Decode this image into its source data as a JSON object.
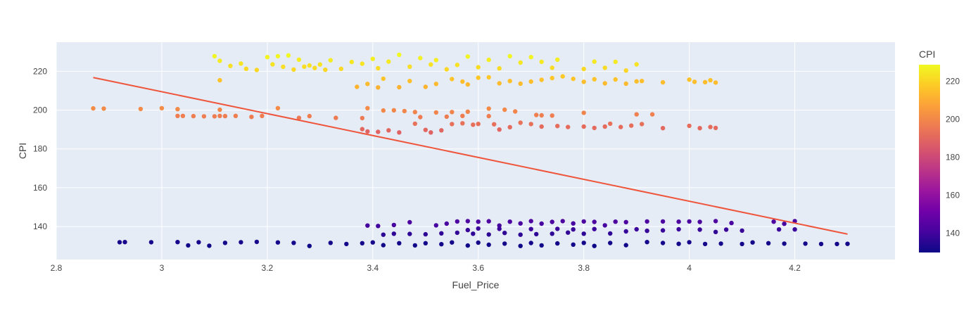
{
  "chart_data": {
    "type": "scatter",
    "title": "",
    "xlabel": "Fuel_Price",
    "ylabel": "CPI",
    "xlim": [
      2.8,
      4.39
    ],
    "ylim": [
      123,
      235
    ],
    "x_ticks": [
      2.8,
      3,
      3.2,
      3.4,
      3.6,
      3.8,
      4,
      4.2
    ],
    "x_tick_labels": [
      "2.8",
      "3",
      "3.2",
      "3.4",
      "3.6",
      "3.8",
      "4",
      "4.2"
    ],
    "y_ticks": [
      140,
      160,
      180,
      200,
      220
    ],
    "y_tick_labels": [
      "140",
      "160",
      "180",
      "200",
      "220"
    ],
    "grid": true,
    "background_color": "#e5ecf6",
    "trendline": {
      "name": "",
      "color": "#ef553b",
      "points": [
        [
          2.87,
          216.8
        ],
        [
          4.3,
          136.1
        ]
      ]
    },
    "colorbar": {
      "title": "CPI",
      "range": [
        129.8,
        228.7
      ],
      "ticks": [
        140,
        160,
        180,
        200,
        220
      ],
      "tick_labels": [
        "140",
        "160",
        "180",
        "200",
        "220"
      ],
      "colorscale": [
        "#0d0887",
        "#46039f",
        "#7201a8",
        "#9c179e",
        "#bd3786",
        "#d8576b",
        "#ed7953",
        "#fb9f3a",
        "#fdca26",
        "#f0f921"
      ]
    },
    "series": [
      {
        "name": "",
        "points": [
          [
            2.87,
            200.9
          ],
          [
            2.89,
            200.8
          ],
          [
            2.96,
            200.6
          ],
          [
            3.0,
            201.0
          ],
          [
            3.03,
            200.5
          ],
          [
            3.03,
            197.0
          ],
          [
            3.04,
            197.0
          ],
          [
            3.06,
            196.9
          ],
          [
            3.08,
            196.8
          ],
          [
            3.1,
            196.8
          ],
          [
            3.11,
            197.0
          ],
          [
            3.11,
            200.2
          ],
          [
            3.12,
            196.9
          ],
          [
            3.14,
            197.0
          ],
          [
            3.17,
            196.5
          ],
          [
            3.19,
            197.0
          ],
          [
            3.22,
            201.0
          ],
          [
            3.26,
            196.0
          ],
          [
            3.28,
            196.9
          ],
          [
            3.33,
            196.0
          ],
          [
            3.38,
            195.9
          ],
          [
            3.39,
            201.0
          ],
          [
            3.42,
            199.8
          ],
          [
            3.44,
            199.9
          ],
          [
            3.46,
            199.5
          ],
          [
            3.48,
            199.0
          ],
          [
            3.52,
            198.8
          ],
          [
            3.55,
            199.0
          ],
          [
            3.58,
            199.2
          ],
          [
            3.62,
            200.8
          ],
          [
            3.65,
            200.2
          ],
          [
            3.67,
            199.3
          ],
          [
            3.72,
            197.3
          ],
          [
            3.8,
            198.6
          ],
          [
            3.9,
            197.8
          ],
          [
            3.93,
            197.8
          ],
          [
            3.49,
            196.4
          ],
          [
            3.54,
            196.6
          ],
          [
            3.57,
            197.0
          ],
          [
            3.62,
            196.9
          ],
          [
            3.71,
            197.5
          ],
          [
            3.74,
            197.2
          ],
          [
            3.39,
            189.0
          ],
          [
            3.41,
            188.8
          ],
          [
            3.43,
            189.6
          ],
          [
            3.45,
            188.5
          ],
          [
            3.48,
            193.0
          ],
          [
            3.51,
            188.5
          ],
          [
            3.53,
            189.6
          ],
          [
            3.55,
            192.8
          ],
          [
            3.57,
            193.2
          ],
          [
            3.59,
            192.5
          ],
          [
            3.6,
            192.9
          ],
          [
            3.63,
            192.7
          ],
          [
            3.64,
            190.0
          ],
          [
            3.66,
            191.2
          ],
          [
            3.68,
            193.5
          ],
          [
            3.7,
            192.8
          ],
          [
            3.72,
            191.5
          ],
          [
            3.75,
            191.8
          ],
          [
            3.77,
            191.3
          ],
          [
            3.8,
            191.5
          ],
          [
            3.82,
            190.8
          ],
          [
            3.84,
            191.5
          ],
          [
            3.85,
            193.0
          ],
          [
            3.87,
            191.3
          ],
          [
            3.89,
            192.0
          ],
          [
            3.91,
            192.8
          ],
          [
            3.95,
            190.7
          ],
          [
            4.0,
            191.9
          ],
          [
            4.02,
            190.7
          ],
          [
            4.04,
            191.3
          ],
          [
            4.05,
            190.8
          ],
          [
            3.38,
            190.2
          ],
          [
            3.5,
            189.8
          ],
          [
            3.1,
            227.8
          ],
          [
            3.11,
            225.4
          ],
          [
            3.13,
            222.8
          ],
          [
            3.15,
            224.0
          ],
          [
            3.16,
            221.3
          ],
          [
            3.18,
            220.7
          ],
          [
            3.2,
            227.3
          ],
          [
            3.21,
            223.6
          ],
          [
            3.22,
            227.8
          ],
          [
            3.23,
            222.3
          ],
          [
            3.24,
            228.2
          ],
          [
            3.25,
            220.9
          ],
          [
            3.26,
            226.0
          ],
          [
            3.27,
            222.4
          ],
          [
            3.28,
            223.0
          ],
          [
            3.29,
            221.7
          ],
          [
            3.3,
            223.5
          ],
          [
            3.31,
            220.8
          ],
          [
            3.32,
            225.7
          ],
          [
            3.34,
            221.3
          ],
          [
            3.36,
            224.8
          ],
          [
            3.38,
            223.9
          ],
          [
            3.4,
            226.4
          ],
          [
            3.41,
            221.6
          ],
          [
            3.43,
            225.0
          ],
          [
            3.45,
            228.5
          ],
          [
            3.47,
            222.4
          ],
          [
            3.49,
            226.8
          ],
          [
            3.51,
            223.5
          ],
          [
            3.52,
            225.8
          ],
          [
            3.54,
            221.0
          ],
          [
            3.56,
            223.3
          ],
          [
            3.58,
            227.6
          ],
          [
            3.6,
            222.1
          ],
          [
            3.62,
            225.9
          ],
          [
            3.64,
            221.5
          ],
          [
            3.66,
            227.8
          ],
          [
            3.68,
            224.5
          ],
          [
            3.7,
            227.3
          ],
          [
            3.72,
            224.9
          ],
          [
            3.74,
            221.8
          ],
          [
            3.75,
            226.0
          ],
          [
            3.8,
            221.2
          ],
          [
            3.82,
            225.0
          ],
          [
            3.84,
            221.8
          ],
          [
            3.86,
            224.9
          ],
          [
            3.88,
            220.4
          ],
          [
            3.9,
            223.6
          ],
          [
            3.11,
            215.4
          ],
          [
            3.37,
            212.0
          ],
          [
            3.39,
            213.5
          ],
          [
            3.41,
            211.7
          ],
          [
            3.42,
            216.2
          ],
          [
            3.45,
            211.8
          ],
          [
            3.47,
            215.0
          ],
          [
            3.5,
            212.0
          ],
          [
            3.52,
            213.5
          ],
          [
            3.55,
            216.0
          ],
          [
            3.57,
            214.7
          ],
          [
            3.58,
            213.2
          ],
          [
            3.6,
            216.7
          ],
          [
            3.62,
            216.9
          ],
          [
            3.64,
            213.8
          ],
          [
            3.66,
            215.0
          ],
          [
            3.68,
            213.6
          ],
          [
            3.7,
            214.7
          ],
          [
            3.72,
            215.6
          ],
          [
            3.74,
            216.5
          ],
          [
            3.76,
            217.4
          ],
          [
            3.78,
            216.1
          ],
          [
            3.8,
            214.6
          ],
          [
            3.82,
            215.9
          ],
          [
            3.84,
            213.8
          ],
          [
            3.86,
            215.8
          ],
          [
            3.88,
            213.6
          ],
          [
            3.9,
            214.8
          ],
          [
            3.91,
            215.0
          ],
          [
            3.95,
            214.3
          ],
          [
            4.0,
            215.7
          ],
          [
            4.01,
            214.6
          ],
          [
            4.03,
            214.4
          ],
          [
            4.04,
            215.4
          ],
          [
            4.05,
            214.2
          ],
          [
            2.92,
            131.9
          ],
          [
            2.93,
            132.0
          ],
          [
            2.98,
            131.9
          ],
          [
            3.03,
            132.0
          ],
          [
            3.05,
            130.3
          ],
          [
            3.07,
            131.9
          ],
          [
            3.09,
            130.1
          ],
          [
            3.12,
            131.6
          ],
          [
            3.15,
            131.9
          ],
          [
            3.18,
            132.1
          ],
          [
            3.22,
            131.8
          ],
          [
            3.25,
            131.6
          ],
          [
            3.28,
            130.0
          ],
          [
            3.32,
            131.6
          ],
          [
            3.35,
            131.0
          ],
          [
            3.38,
            131.4
          ],
          [
            3.4,
            131.8
          ],
          [
            3.42,
            130.4
          ],
          [
            3.45,
            131.4
          ],
          [
            3.48,
            130.3
          ],
          [
            3.5,
            131.4
          ],
          [
            3.53,
            130.9
          ],
          [
            3.55,
            131.8
          ],
          [
            3.58,
            130.2
          ],
          [
            3.6,
            131.7
          ],
          [
            3.62,
            130.6
          ],
          [
            3.65,
            131.2
          ],
          [
            3.68,
            130.0
          ],
          [
            3.7,
            131.5
          ],
          [
            3.72,
            130.3
          ],
          [
            3.75,
            131.3
          ],
          [
            3.78,
            130.7
          ],
          [
            3.8,
            131.6
          ],
          [
            3.82,
            130.0
          ],
          [
            3.85,
            131.5
          ],
          [
            3.88,
            130.4
          ],
          [
            3.92,
            132.0
          ],
          [
            3.95,
            131.5
          ],
          [
            3.98,
            131.1
          ],
          [
            4.0,
            131.9
          ],
          [
            4.03,
            131.0
          ],
          [
            4.06,
            131.2
          ],
          [
            4.1,
            131.0
          ],
          [
            4.12,
            131.8
          ],
          [
            4.15,
            131.4
          ],
          [
            4.18,
            131.2
          ],
          [
            4.22,
            131.2
          ],
          [
            4.25,
            131.0
          ],
          [
            4.28,
            131.0
          ],
          [
            4.3,
            131.1
          ],
          [
            3.39,
            140.5
          ],
          [
            3.41,
            140.3
          ],
          [
            3.44,
            140.8
          ],
          [
            3.47,
            142.2
          ],
          [
            3.52,
            140.6
          ],
          [
            3.54,
            141.5
          ],
          [
            3.56,
            142.6
          ],
          [
            3.58,
            142.8
          ],
          [
            3.6,
            142.5
          ],
          [
            3.62,
            142.7
          ],
          [
            3.64,
            140.5
          ],
          [
            3.66,
            142.5
          ],
          [
            3.68,
            141.6
          ],
          [
            3.7,
            142.8
          ],
          [
            3.72,
            141.5
          ],
          [
            3.74,
            142.4
          ],
          [
            3.76,
            142.8
          ],
          [
            3.78,
            141.6
          ],
          [
            3.8,
            142.6
          ],
          [
            3.82,
            142.4
          ],
          [
            3.84,
            140.6
          ],
          [
            3.86,
            142.5
          ],
          [
            3.88,
            142.3
          ],
          [
            3.92,
            142.6
          ],
          [
            3.95,
            142.6
          ],
          [
            3.98,
            142.5
          ],
          [
            4.0,
            142.6
          ],
          [
            4.02,
            142.4
          ],
          [
            4.05,
            142.8
          ],
          [
            4.08,
            141.8
          ],
          [
            4.16,
            142.5
          ],
          [
            4.18,
            141.4
          ],
          [
            4.2,
            142.8
          ],
          [
            3.42,
            135.8
          ],
          [
            3.44,
            136.3
          ],
          [
            3.47,
            136.2
          ],
          [
            3.5,
            136.0
          ],
          [
            3.53,
            136.5
          ],
          [
            3.56,
            136.8
          ],
          [
            3.59,
            136.3
          ],
          [
            3.62,
            135.9
          ],
          [
            3.65,
            136.7
          ],
          [
            3.68,
            135.8
          ],
          [
            3.71,
            136.1
          ],
          [
            3.74,
            136.3
          ],
          [
            3.77,
            136.9
          ],
          [
            3.8,
            136.3
          ],
          [
            3.85,
            136.4
          ],
          [
            3.88,
            137.5
          ],
          [
            3.92,
            137.8
          ],
          [
            3.95,
            138.0
          ],
          [
            4.02,
            138.4
          ],
          [
            4.05,
            137.2
          ],
          [
            4.1,
            137.9
          ],
          [
            4.17,
            138.5
          ],
          [
            4.2,
            138.5
          ],
          [
            3.58,
            138.2
          ],
          [
            3.6,
            139.0
          ],
          [
            3.64,
            138.8
          ],
          [
            3.7,
            138.7
          ],
          [
            3.75,
            138.8
          ],
          [
            3.78,
            138.5
          ],
          [
            3.82,
            138.7
          ],
          [
            3.9,
            138.6
          ],
          [
            3.98,
            138.6
          ],
          [
            4.07,
            138.4
          ]
        ]
      }
    ]
  }
}
